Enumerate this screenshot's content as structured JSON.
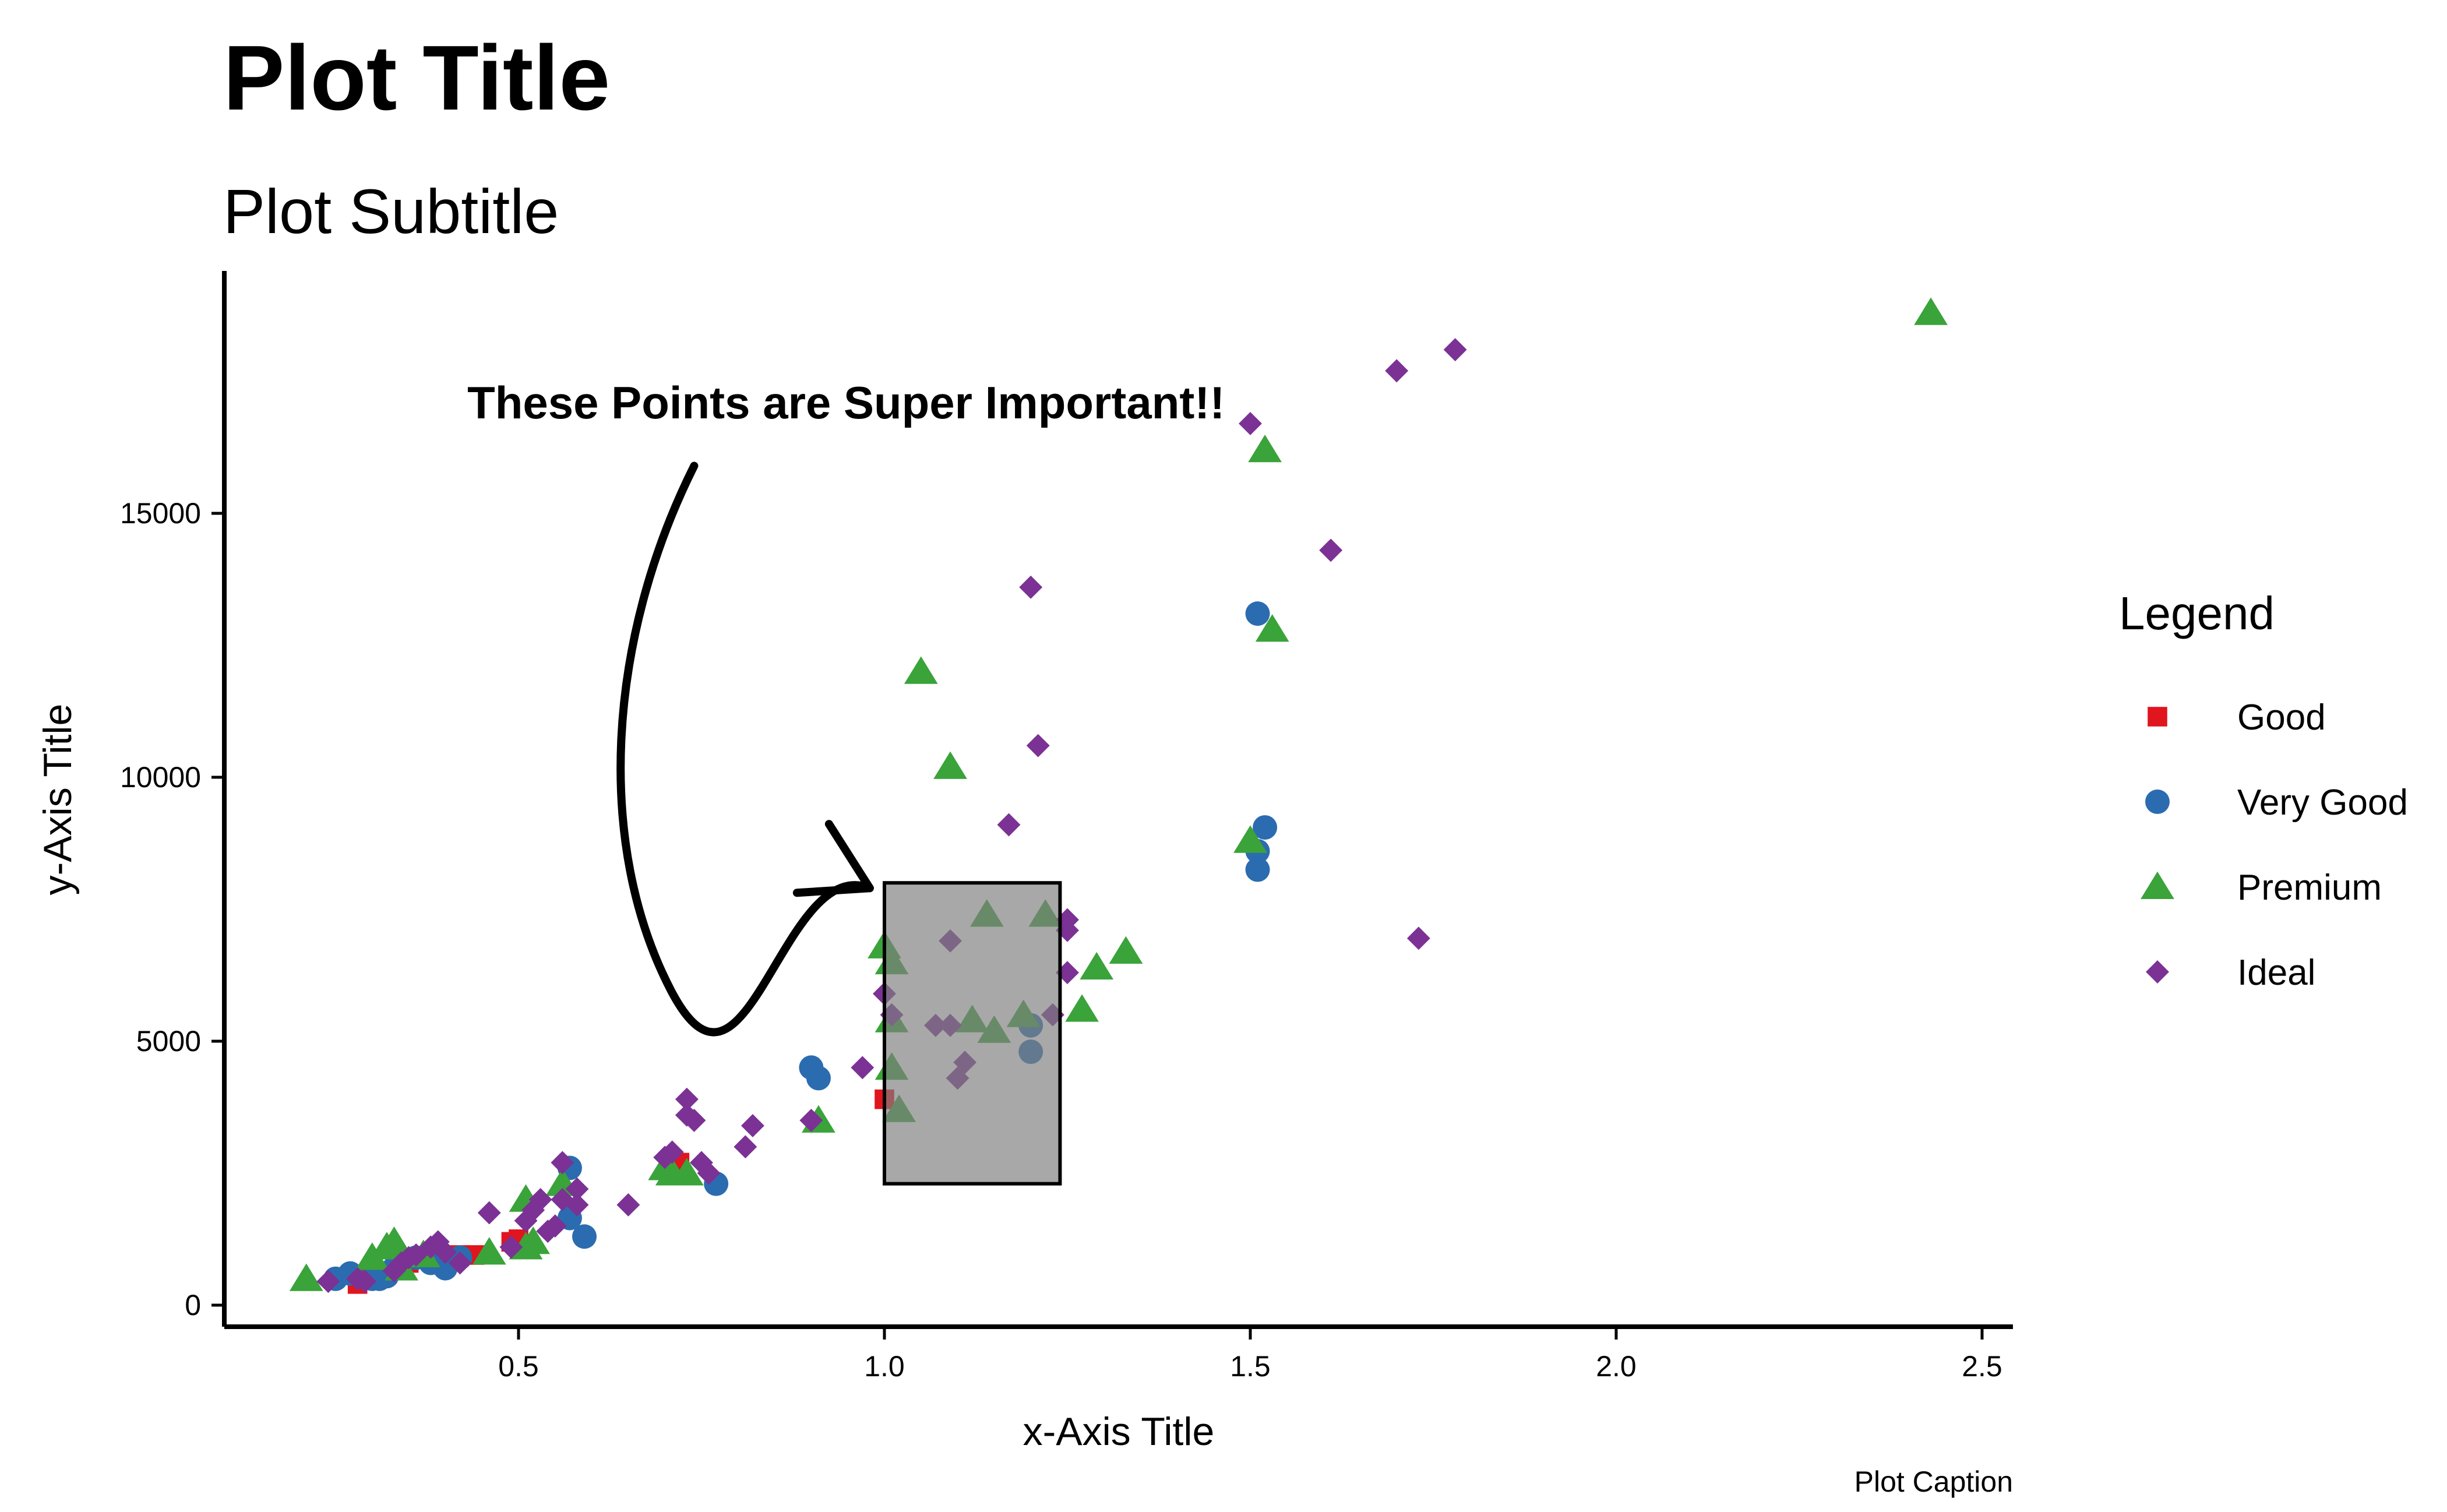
{
  "chart_data": {
    "type": "scatter",
    "title": "Plot Title",
    "subtitle": "Plot Subtitle",
    "caption": "Plot Caption",
    "xlabel": "x-Axis Title",
    "ylabel": "y-Axis Title",
    "xlim": [
      0.1,
      2.55
    ],
    "ylim": [
      -600,
      19500
    ],
    "x_ticks": [
      0.5,
      1.0,
      1.5,
      2.0,
      2.5
    ],
    "x_tick_labels": [
      "0.5",
      "1.0",
      "1.5",
      "2.0",
      "2.5"
    ],
    "y_ticks": [
      0,
      5000,
      10000,
      15000
    ],
    "y_tick_labels": [
      "0",
      "5000",
      "10000",
      "15000"
    ],
    "grid": false,
    "legend": {
      "title": "Legend",
      "placement": "right"
    },
    "annotation": {
      "text": "These Points are Super Important!!",
      "highlight_rect": {
        "x0": 1.0,
        "x1": 1.24,
        "y0": 2300,
        "y1": 8000
      },
      "text_anchor": {
        "x": 0.43,
        "y": 16800
      },
      "arrow_from": {
        "x": 0.74,
        "y": 15900
      },
      "arrow_to": {
        "x": 0.98,
        "y": 7900
      }
    },
    "series": [
      {
        "name": "Good",
        "color": "#e0151e",
        "shape": "square",
        "points": [
          [
            0.28,
            400
          ],
          [
            0.29,
            500
          ],
          [
            0.31,
            600
          ],
          [
            0.35,
            800
          ],
          [
            0.42,
            950
          ],
          [
            0.44,
            950
          ],
          [
            0.49,
            1200
          ],
          [
            0.5,
            1250
          ],
          [
            0.72,
            2700
          ],
          [
            1.0,
            3900
          ]
        ]
      },
      {
        "name": "Very Good",
        "color": "#2b6cb0",
        "shape": "circle",
        "points": [
          [
            0.25,
            500
          ],
          [
            0.27,
            600
          ],
          [
            0.3,
            500
          ],
          [
            0.31,
            500
          ],
          [
            0.32,
            550
          ],
          [
            0.33,
            700
          ],
          [
            0.36,
            900
          ],
          [
            0.38,
            800
          ],
          [
            0.4,
            700
          ],
          [
            0.41,
            850
          ],
          [
            0.42,
            900
          ],
          [
            0.57,
            2600
          ],
          [
            0.57,
            1650
          ],
          [
            0.59,
            1300
          ],
          [
            0.77,
            2300
          ],
          [
            0.9,
            4500
          ],
          [
            0.91,
            4300
          ],
          [
            1.2,
            4800
          ],
          [
            1.2,
            5300
          ],
          [
            1.51,
            13100
          ],
          [
            1.51,
            8600
          ],
          [
            1.52,
            9050
          ],
          [
            1.51,
            8250
          ]
        ]
      },
      {
        "name": "Premium",
        "color": "#3aa33a",
        "shape": "triangle",
        "points": [
          [
            0.21,
            500
          ],
          [
            0.3,
            900
          ],
          [
            0.32,
            1100
          ],
          [
            0.33,
            1200
          ],
          [
            0.34,
            700
          ],
          [
            0.37,
            950
          ],
          [
            0.46,
            1000
          ],
          [
            0.51,
            1100
          ],
          [
            0.51,
            2000
          ],
          [
            0.52,
            1200
          ],
          [
            0.56,
            2300
          ],
          [
            0.7,
            2600
          ],
          [
            0.71,
            2500
          ],
          [
            0.73,
            2500
          ],
          [
            0.91,
            3500
          ],
          [
            1.0,
            6800
          ],
          [
            1.01,
            6500
          ],
          [
            1.01,
            5400
          ],
          [
            1.01,
            4500
          ],
          [
            1.02,
            3700
          ],
          [
            1.05,
            12000
          ],
          [
            1.09,
            10200
          ],
          [
            1.12,
            5400
          ],
          [
            1.14,
            7400
          ],
          [
            1.15,
            5200
          ],
          [
            1.19,
            5500
          ],
          [
            1.22,
            7400
          ],
          [
            1.27,
            5600
          ],
          [
            1.29,
            6400
          ],
          [
            1.33,
            6700
          ],
          [
            1.5,
            8800
          ],
          [
            1.52,
            16200
          ],
          [
            1.53,
            12800
          ],
          [
            2.43,
            18800
          ]
        ]
      },
      {
        "name": "Ideal",
        "color": "#7b3294",
        "shape": "diamond",
        "points": [
          [
            0.24,
            450
          ],
          [
            0.28,
            500
          ],
          [
            0.29,
            450
          ],
          [
            0.33,
            650
          ],
          [
            0.34,
            800
          ],
          [
            0.35,
            900
          ],
          [
            0.36,
            950
          ],
          [
            0.38,
            1100
          ],
          [
            0.39,
            1200
          ],
          [
            0.4,
            1000
          ],
          [
            0.42,
            800
          ],
          [
            0.46,
            1750
          ],
          [
            0.49,
            1100
          ],
          [
            0.51,
            1600
          ],
          [
            0.52,
            1800
          ],
          [
            0.53,
            2000
          ],
          [
            0.54,
            1400
          ],
          [
            0.55,
            1500
          ],
          [
            0.56,
            2700
          ],
          [
            0.56,
            2000
          ],
          [
            0.58,
            2200
          ],
          [
            0.58,
            1900
          ],
          [
            0.65,
            1900
          ],
          [
            0.7,
            2800
          ],
          [
            0.71,
            2900
          ],
          [
            0.73,
            3900
          ],
          [
            0.73,
            3600
          ],
          [
            0.74,
            3500
          ],
          [
            0.75,
            2700
          ],
          [
            0.76,
            2500
          ],
          [
            0.81,
            3000
          ],
          [
            0.82,
            3400
          ],
          [
            0.9,
            3500
          ],
          [
            0.97,
            4500
          ],
          [
            1.0,
            5900
          ],
          [
            1.01,
            5500
          ],
          [
            1.07,
            5300
          ],
          [
            1.09,
            5300
          ],
          [
            1.09,
            6900
          ],
          [
            1.1,
            4300
          ],
          [
            1.11,
            4600
          ],
          [
            1.17,
            9100
          ],
          [
            1.2,
            13600
          ],
          [
            1.21,
            10600
          ],
          [
            1.23,
            5500
          ],
          [
            1.25,
            7300
          ],
          [
            1.25,
            7100
          ],
          [
            1.25,
            6300
          ],
          [
            1.5,
            16700
          ],
          [
            1.61,
            14300
          ],
          [
            1.7,
            17700
          ],
          [
            1.73,
            6950
          ],
          [
            1.78,
            18100
          ]
        ]
      }
    ]
  }
}
